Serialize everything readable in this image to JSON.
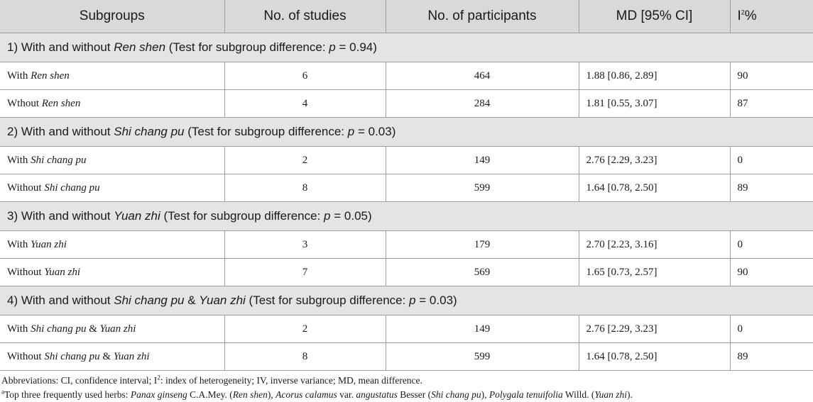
{
  "headers": [
    "Subgroups",
    "No. of studies",
    "No. of participants",
    "MD [95% CI]",
    "I",
    "2",
    "%"
  ],
  "groups": [
    {
      "t1": "1) With and without ",
      "herb": "Ren shen",
      "t2": " (Test for subgroup difference: ",
      "p": "p",
      "t3": " = 0.94)",
      "rows": [
        {
          "pre": "With ",
          "herb": "Ren shen",
          "mid": "",
          "herb2": "",
          "studies": "6",
          "participants": "464",
          "md": "1.88 [0.86, 2.89]",
          "i2": "90"
        },
        {
          "pre": "Wthout ",
          "herb": "Ren shen",
          "mid": "",
          "herb2": "",
          "studies": "4",
          "participants": "284",
          "md": "1.81 [0.55, 3.07]",
          "i2": "87"
        }
      ]
    },
    {
      "t1": "2) With and without ",
      "herb": "Shi chang pu",
      "t2": " (Test for subgroup difference: ",
      "p": "p",
      "t3": " = 0.03)",
      "rows": [
        {
          "pre": "With ",
          "herb": "Shi chang pu",
          "mid": "",
          "herb2": "",
          "studies": "2",
          "participants": "149",
          "md": "2.76 [2.29, 3.23]",
          "i2": "0"
        },
        {
          "pre": "Without ",
          "herb": "Shi chang pu",
          "mid": "",
          "herb2": "",
          "studies": "8",
          "participants": "599",
          "md": "1.64 [0.78, 2.50]",
          "i2": "89"
        }
      ]
    },
    {
      "t1": "3) With and without ",
      "herb": "Yuan zhi",
      "t2": " (Test for subgroup difference: ",
      "p": "p",
      "t3": " = 0.05)",
      "rows": [
        {
          "pre": "With ",
          "herb": "Yuan zhi",
          "mid": "",
          "herb2": "",
          "studies": "3",
          "participants": "179",
          "md": "2.70 [2.23, 3.16]",
          "i2": "0"
        },
        {
          "pre": "Without ",
          "herb": "Yuan zhi",
          "mid": "",
          "herb2": "",
          "studies": "7",
          "participants": "569",
          "md": "1.65 [0.73, 2.57]",
          "i2": "90"
        }
      ]
    },
    {
      "t1": "4) With and without ",
      "herb": "Shi chang pu",
      "t2": " & ",
      "herb_b": "Yuan zhi",
      "t2b": " (Test for subgroup difference: ",
      "p": "p",
      "t3": " = 0.03)",
      "rows": [
        {
          "pre": "With ",
          "herb": "Shi chang pu",
          "mid": " & ",
          "herb2": "Yuan zhi",
          "studies": "2",
          "participants": "149",
          "md": "2.76 [2.29, 3.23]",
          "i2": "0"
        },
        {
          "pre": "Without ",
          "herb": "Shi chang pu",
          "mid": " & ",
          "herb2": "Yuan zhi",
          "studies": "8",
          "participants": "599",
          "md": "1.64 [0.78, 2.50]",
          "i2": "89"
        }
      ]
    }
  ],
  "footnotes": {
    "abbrev_a": "Abbreviations: CI, confidence interval; I",
    "abbrev_sup": "2",
    "abbrev_b": ": index of heterogeneity; IV, inverse variance; MD, mean difference.",
    "note_mark": "a",
    "note_1": "Top three frequently used herbs: ",
    "sp1": "Panax ginseng",
    "n2": " C.A.Mey. (",
    "sp1c": "Ren shen",
    "n3": "), ",
    "sp2": "Acorus calamus",
    "n4": " var. ",
    "sp2v": "angustatus",
    "n5": " Besser (",
    "sp2c": "Shi chang pu",
    "n6": "), ",
    "sp3": "Polygala tenuifolia",
    "n7": " Willd. (",
    "sp3c": "Yuan zhi",
    "n8": ")."
  }
}
